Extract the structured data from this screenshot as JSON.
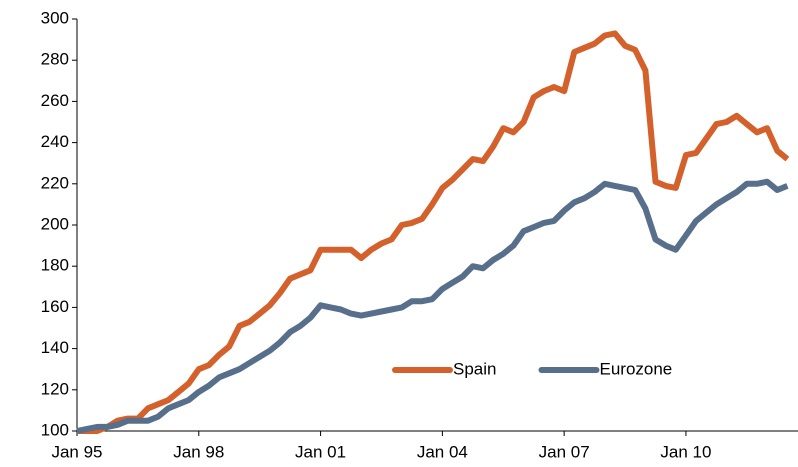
{
  "chart_data": {
    "type": "line",
    "x": [
      1995,
      1995.25,
      1995.5,
      1995.75,
      1996,
      1996.25,
      1996.5,
      1996.75,
      1997,
      1997.25,
      1997.5,
      1997.75,
      1998,
      1998.25,
      1998.5,
      1998.75,
      1999,
      1999.25,
      1999.5,
      1999.75,
      2000,
      2000.25,
      2000.5,
      2000.75,
      2001,
      2001.25,
      2001.5,
      2001.75,
      2002,
      2002.25,
      2002.5,
      2002.75,
      2003,
      2003.25,
      2003.5,
      2003.75,
      2004,
      2004.25,
      2004.5,
      2004.75,
      2005,
      2005.25,
      2005.5,
      2005.75,
      2006,
      2006.25,
      2006.5,
      2006.75,
      2007,
      2007.25,
      2007.5,
      2007.75,
      2008,
      2008.25,
      2008.5,
      2008.75,
      2009,
      2009.25,
      2009.5,
      2009.75,
      2010,
      2010.25,
      2010.5,
      2010.75,
      2011,
      2011.25,
      2011.5,
      2011.75,
      2012,
      2012.25,
      2012.5
    ],
    "series": [
      {
        "name": "Spain",
        "color": "#d4612b",
        "values": [
          100,
          100,
          100,
          102,
          105,
          106,
          106,
          111,
          113,
          115,
          119,
          123,
          130,
          132,
          137,
          141,
          151,
          153,
          157,
          161,
          167,
          174,
          176,
          178,
          188,
          188,
          188,
          188,
          184,
          188,
          191,
          193,
          200,
          201,
          203,
          210,
          218,
          222,
          227,
          232,
          231,
          238,
          247,
          245,
          250,
          262,
          265,
          267,
          265,
          284,
          286,
          288,
          292,
          293,
          287,
          285,
          275,
          221,
          219,
          218,
          234,
          235,
          242,
          249,
          250,
          253,
          249,
          245,
          247,
          236,
          232
        ]
      },
      {
        "name": "Eurozone",
        "color": "#586f8c",
        "values": [
          100,
          101,
          102,
          102,
          103,
          105,
          105,
          105,
          107,
          111,
          113,
          115,
          119,
          122,
          126,
          128,
          130,
          133,
          136,
          139,
          143,
          148,
          151,
          155,
          161,
          160,
          159,
          157,
          156,
          157,
          158,
          159,
          160,
          163,
          163,
          164,
          169,
          172,
          175,
          180,
          179,
          183,
          186,
          190,
          197,
          199,
          201,
          202,
          207,
          211,
          213,
          216,
          220,
          219,
          218,
          217,
          208,
          193,
          190,
          188,
          195,
          202,
          206,
          210,
          213,
          216,
          220,
          220,
          221,
          217,
          219
        ]
      }
    ],
    "xlim": [
      1995,
      2012.76
    ],
    "xticks": [
      {
        "value": 1995,
        "label": "Jan 95"
      },
      {
        "value": 1998,
        "label": "Jan 98"
      },
      {
        "value": 2001,
        "label": "Jan 01"
      },
      {
        "value": 2004,
        "label": "Jan 04"
      },
      {
        "value": 2007,
        "label": "Jan 07"
      },
      {
        "value": 2010,
        "label": "Jan 10"
      }
    ],
    "ylim": [
      100,
      300
    ],
    "yticks": [
      100,
      120,
      140,
      160,
      180,
      200,
      220,
      240,
      260,
      280,
      300
    ],
    "legend": "lower right"
  }
}
